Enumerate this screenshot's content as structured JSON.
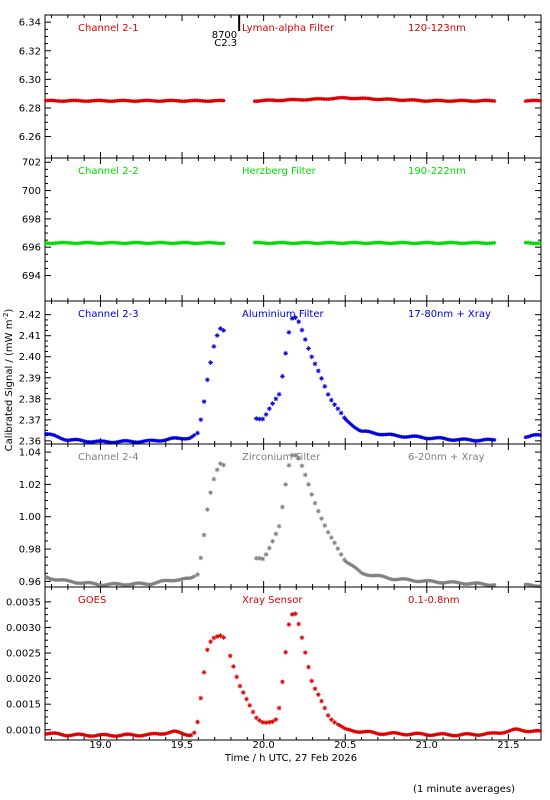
{
  "figure": {
    "xlabel": "Time / h UTC, 27 Feb 2026",
    "ylabel": "Calibrated Signal / (mW m",
    "ylabel_sup": "-2",
    "ylabel_close": ")",
    "footnote": "(1 minute averages)",
    "event": {
      "label1": "8700",
      "label2": "C2.3",
      "x": 19.85
    }
  },
  "chart_data": [
    {
      "type": "scatter",
      "channel": "Channel 2-1",
      "filter": "Lyman-alpha Filter",
      "band": "120-123nm",
      "color": "#dd0000",
      "xlim": [
        18.66,
        21.7
      ],
      "ylim": [
        6.245,
        6.345
      ],
      "yticks": [
        6.26,
        6.28,
        6.3,
        6.32,
        6.34
      ],
      "ytick_labels": [
        "6.26",
        "6.28",
        "6.30",
        "6.32",
        "6.34"
      ],
      "profile": "flat",
      "points": [
        [
          18.7,
          6.285
        ],
        [
          19.3,
          6.285
        ],
        [
          19.75,
          6.285
        ],
        [
          19.95,
          6.285
        ],
        [
          20.3,
          6.286
        ],
        [
          20.5,
          6.287
        ],
        [
          21.0,
          6.285
        ],
        [
          21.4,
          6.285
        ],
        [
          21.65,
          6.285
        ]
      ]
    },
    {
      "type": "scatter",
      "channel": "Channel 2-2",
      "filter": "Herzberg Filter",
      "band": "190-222nm",
      "color": "#00dd00",
      "xlim": [
        18.66,
        21.7
      ],
      "ylim": [
        692.2,
        702.3
      ],
      "yticks": [
        694,
        696,
        698,
        700,
        702
      ],
      "ytick_labels": [
        "694",
        "696",
        "698",
        "700",
        "702"
      ],
      "profile": "flat",
      "points": [
        [
          18.7,
          696.3
        ],
        [
          19.3,
          696.3
        ],
        [
          19.75,
          696.3
        ],
        [
          19.95,
          696.3
        ],
        [
          20.5,
          696.3
        ],
        [
          21.0,
          696.3
        ],
        [
          21.4,
          696.3
        ],
        [
          21.65,
          696.3
        ]
      ]
    },
    {
      "type": "scatter",
      "channel": "Channel 2-3",
      "filter": "Aluminium Filter",
      "band": "17-80nm + Xray",
      "color": "#0000dd",
      "xlim": [
        18.66,
        21.7
      ],
      "ylim": [
        2.3585,
        2.4265
      ],
      "yticks": [
        2.36,
        2.37,
        2.38,
        2.39,
        2.4,
        2.41,
        2.42
      ],
      "ytick_labels": [
        "2.36",
        "2.37",
        "2.38",
        "2.39",
        "2.40",
        "2.41",
        "2.42"
      ],
      "profile": "flare",
      "points": [
        [
          18.66,
          2.3635
        ],
        [
          18.8,
          2.3605
        ],
        [
          19.0,
          2.3595
        ],
        [
          19.3,
          2.3598
        ],
        [
          19.45,
          2.361
        ],
        [
          19.55,
          2.3615
        ],
        [
          19.6,
          2.3635
        ],
        [
          19.63,
          2.376
        ],
        [
          19.66,
          2.392
        ],
        [
          19.7,
          2.407
        ],
        [
          19.73,
          2.413
        ],
        [
          19.75,
          2.4132
        ],
        [
          19.95,
          2.371
        ],
        [
          20.0,
          2.3705
        ],
        [
          20.1,
          2.383
        ],
        [
          20.15,
          2.41
        ],
        [
          20.18,
          2.4195
        ],
        [
          20.22,
          2.416
        ],
        [
          20.3,
          2.399
        ],
        [
          20.4,
          2.3815
        ],
        [
          20.5,
          2.37
        ],
        [
          20.6,
          2.3645
        ],
        [
          20.8,
          2.3625
        ],
        [
          21.0,
          2.3615
        ],
        [
          21.2,
          2.3605
        ],
        [
          21.4,
          2.3603
        ],
        [
          21.65,
          2.3625
        ]
      ]
    },
    {
      "type": "scatter",
      "channel": "Channel 2-4",
      "filter": "Zirconium Filter",
      "band": "6-20nm + Xray",
      "color": "#808080",
      "xlim": [
        18.66,
        21.7
      ],
      "ylim": [
        0.9565,
        1.045
      ],
      "yticks": [
        0.96,
        0.98,
        1.0,
        1.02,
        1.04
      ],
      "ytick_labels": [
        "0.96",
        "0.98",
        "1.00",
        "1.02",
        "1.04"
      ],
      "profile": "flare",
      "points": [
        [
          18.66,
          0.9625
        ],
        [
          18.8,
          0.96
        ],
        [
          19.0,
          0.958
        ],
        [
          19.3,
          0.9585
        ],
        [
          19.45,
          0.961
        ],
        [
          19.55,
          0.9615
        ],
        [
          19.6,
          0.965
        ],
        [
          19.63,
          0.985
        ],
        [
          19.66,
          1.008
        ],
        [
          19.7,
          1.025
        ],
        [
          19.73,
          1.033
        ],
        [
          19.75,
          1.034
        ],
        [
          19.95,
          0.974
        ],
        [
          20.0,
          0.9735
        ],
        [
          20.1,
          0.995
        ],
        [
          20.15,
          1.03
        ],
        [
          20.18,
          1.04
        ],
        [
          20.22,
          1.036
        ],
        [
          20.3,
          1.012
        ],
        [
          20.4,
          0.989
        ],
        [
          20.5,
          0.973
        ],
        [
          20.6,
          0.965
        ],
        [
          20.8,
          0.9615
        ],
        [
          21.0,
          0.96
        ],
        [
          21.2,
          0.959
        ],
        [
          21.4,
          0.958
        ],
        [
          21.65,
          0.9575
        ]
      ]
    },
    {
      "type": "scatter",
      "channel": "GOES",
      "filter": "Xray Sensor",
      "band": "0.1-0.8nm",
      "color": "#dd0000",
      "xlim": [
        18.66,
        21.7
      ],
      "ylim": [
        0.0008,
        0.00379
      ],
      "yticks": [
        0.001,
        0.0015,
        0.002,
        0.0025,
        0.003,
        0.0035
      ],
      "ytick_labels": [
        "0.0010",
        "0.0015",
        "0.0020",
        "0.0025",
        "0.0030",
        "0.0035"
      ],
      "profile": "goes",
      "points": [
        [
          18.66,
          0.00093
        ],
        [
          18.8,
          0.0009
        ],
        [
          19.0,
          0.00089
        ],
        [
          19.3,
          0.0009
        ],
        [
          19.45,
          0.00096
        ],
        [
          19.55,
          0.0009
        ],
        [
          19.58,
          0.00095
        ],
        [
          19.6,
          0.0012
        ],
        [
          19.63,
          0.002
        ],
        [
          19.66,
          0.00268
        ],
        [
          19.7,
          0.00283
        ],
        [
          19.75,
          0.00283
        ],
        [
          19.8,
          0.0024
        ],
        [
          19.85,
          0.0019
        ],
        [
          19.9,
          0.00155
        ],
        [
          19.95,
          0.00125
        ],
        [
          20.0,
          0.00115
        ],
        [
          20.05,
          0.00113
        ],
        [
          20.08,
          0.0012
        ],
        [
          20.1,
          0.0015
        ],
        [
          20.13,
          0.0024
        ],
        [
          20.16,
          0.0032
        ],
        [
          20.19,
          0.0033
        ],
        [
          20.22,
          0.003
        ],
        [
          20.3,
          0.0019
        ],
        [
          20.4,
          0.00125
        ],
        [
          20.5,
          0.001
        ],
        [
          20.7,
          0.00093
        ],
        [
          21.0,
          0.00091
        ],
        [
          21.2,
          0.0009
        ],
        [
          21.4,
          0.00092
        ],
        [
          21.55,
          0.001
        ],
        [
          21.7,
          0.00096
        ]
      ]
    }
  ],
  "xaxis": {
    "ticks": [
      19.0,
      19.5,
      20.0,
      20.5,
      21.0,
      21.5
    ],
    "tick_labels": [
      "19.0",
      "19.5",
      "20.0",
      "20.5",
      "21.0",
      "21.5"
    ],
    "minor_step": 0.1,
    "data_gaps": [
      [
        19.76,
        19.94
      ],
      [
        21.42,
        21.6
      ]
    ],
    "channel3_gap": [
      19.76,
      19.94
    ]
  }
}
